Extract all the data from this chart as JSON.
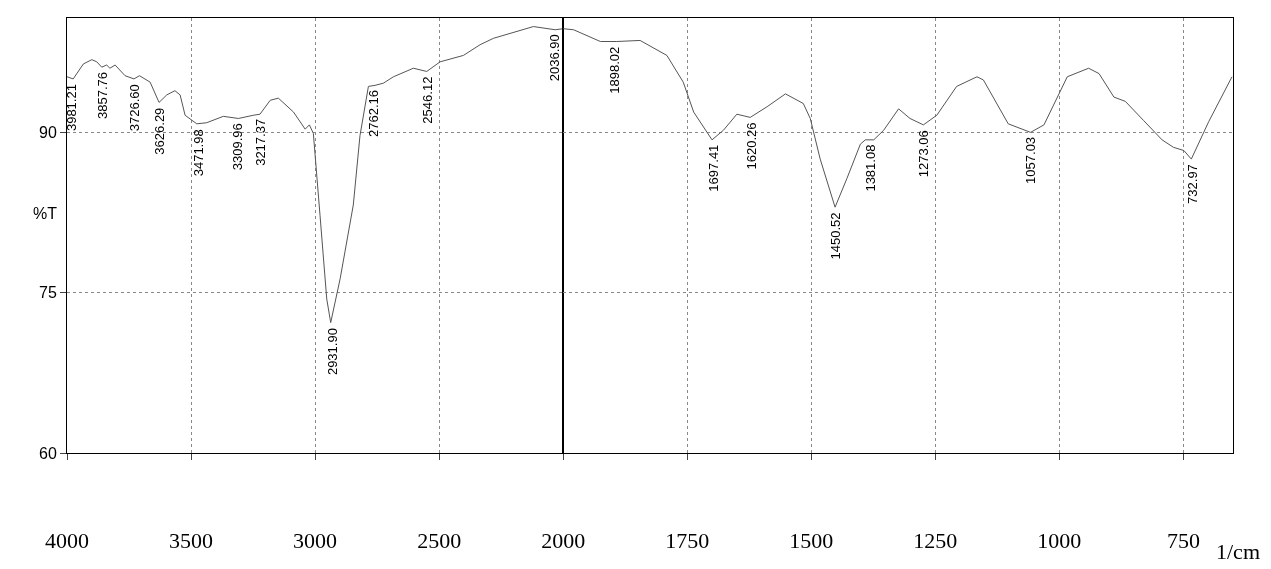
{
  "chart_data": [
    {
      "type": "line",
      "ylabel": "%T",
      "xlim": [
        4000,
        2000
      ],
      "ylim": [
        60,
        100.7
      ],
      "xticks": [
        4000,
        3500,
        3000,
        2500,
        2000
      ],
      "yticks": [
        60,
        75,
        90
      ],
      "grid": true,
      "marker": "none",
      "line_style": "solid",
      "series": [
        {
          "color": "#555555",
          "x": [
            4000,
            3975,
            3934,
            3900,
            3880,
            3860,
            3840,
            3827,
            3806,
            3766,
            3730,
            3708,
            3665,
            3629,
            3598,
            3565,
            3544,
            3524,
            3477,
            3437,
            3370,
            3309,
            3249,
            3222,
            3181,
            3148,
            3087,
            3040,
            3023,
            3007,
            2980,
            2953,
            2937,
            2899,
            2846,
            2819,
            2785,
            2758,
            2725,
            2684,
            2604,
            2550,
            2496,
            2402,
            2335,
            2281,
            2120,
            2032,
            2000
          ],
          "values": [
            95.2,
            95.0,
            96.4,
            96.8,
            96.6,
            96.1,
            96.3,
            96.0,
            96.3,
            95.3,
            95.0,
            95.3,
            94.7,
            92.8,
            93.5,
            93.9,
            93.5,
            91.6,
            90.8,
            90.9,
            91.5,
            91.3,
            91.6,
            91.7,
            93.0,
            93.2,
            91.9,
            90.3,
            90.7,
            89.9,
            82.2,
            74.4,
            72.2,
            76.3,
            83.2,
            89.7,
            94.3,
            94.4,
            94.6,
            95.2,
            96.0,
            95.7,
            96.6,
            97.2,
            98.2,
            98.8,
            99.9,
            99.6,
            99.7
          ]
        }
      ],
      "annotations": [
        {
          "text": "3981.21",
          "x": 3981.21,
          "y": 95.0
        },
        {
          "text": "3857.76",
          "x": 3857.76,
          "y": 96.1
        },
        {
          "text": "3726.60",
          "x": 3726.6,
          "y": 95.0
        },
        {
          "text": "3626.29",
          "x": 3626.29,
          "y": 92.8
        },
        {
          "text": "3471.98",
          "x": 3471.98,
          "y": 90.8
        },
        {
          "text": "3309.96",
          "x": 3309.96,
          "y": 91.3
        },
        {
          "text": "3217.37",
          "x": 3217.37,
          "y": 91.7
        },
        {
          "text": "2931.90",
          "x": 2931.9,
          "y": 72.2
        },
        {
          "text": "2762.16",
          "x": 2762.16,
          "y": 94.4
        },
        {
          "text": "2546.12",
          "x": 2546.12,
          "y": 95.7
        },
        {
          "text": "2036.90",
          "x": 2036.9,
          "y": 99.6
        }
      ]
    },
    {
      "type": "line",
      "xlabel": "1/cm",
      "xlim": [
        2000,
        650
      ],
      "ylim": [
        60,
        100.7
      ],
      "xticks": [
        1750,
        1500,
        1250,
        1000,
        750
      ],
      "yticks": [
        60,
        75,
        90
      ],
      "tick_labels": "x",
      "grid": true,
      "marker": "none",
      "line_style": "solid",
      "series": [
        {
          "color": "#555555",
          "x": [
            2000,
            1979,
            1925,
            1892,
            1845,
            1791,
            1758,
            1737,
            1700,
            1677,
            1650,
            1623,
            1589,
            1552,
            1516,
            1502,
            1482,
            1452,
            1428,
            1401,
            1391,
            1374,
            1354,
            1324,
            1301,
            1274,
            1247,
            1207,
            1166,
            1153,
            1103,
            1058,
            1031,
            984,
            941,
            920,
            890,
            867,
            830,
            793,
            770,
            749,
            734,
            699,
            652
          ],
          "values": [
            99.7,
            99.6,
            98.5,
            98.5,
            98.6,
            97.2,
            94.7,
            91.9,
            89.3,
            90.2,
            91.7,
            91.4,
            92.4,
            93.6,
            92.7,
            91.3,
            87.5,
            83.0,
            85.7,
            88.9,
            89.3,
            89.3,
            90.2,
            92.2,
            91.3,
            90.7,
            91.6,
            94.3,
            95.2,
            94.9,
            90.8,
            90.0,
            90.7,
            95.2,
            96.0,
            95.5,
            93.3,
            92.9,
            91.1,
            89.3,
            88.6,
            88.3,
            87.5,
            91.0,
            95.2
          ]
        }
      ],
      "annotations": [
        {
          "text": "1898.02",
          "x": 1898.02,
          "y": 98.5
        },
        {
          "text": "1697.41",
          "x": 1697.41,
          "y": 89.3
        },
        {
          "text": "1620.26",
          "x": 1620.26,
          "y": 91.4
        },
        {
          "text": "1450.52",
          "x": 1450.52,
          "y": 83.0
        },
        {
          "text": "1381.08",
          "x": 1381.08,
          "y": 89.3
        },
        {
          "text": "1273.06",
          "x": 1273.06,
          "y": 90.7
        },
        {
          "text": "1057.03",
          "x": 1057.03,
          "y": 90.0
        },
        {
          "text": "732.97",
          "x": 732.97,
          "y": 87.5
        }
      ]
    }
  ]
}
